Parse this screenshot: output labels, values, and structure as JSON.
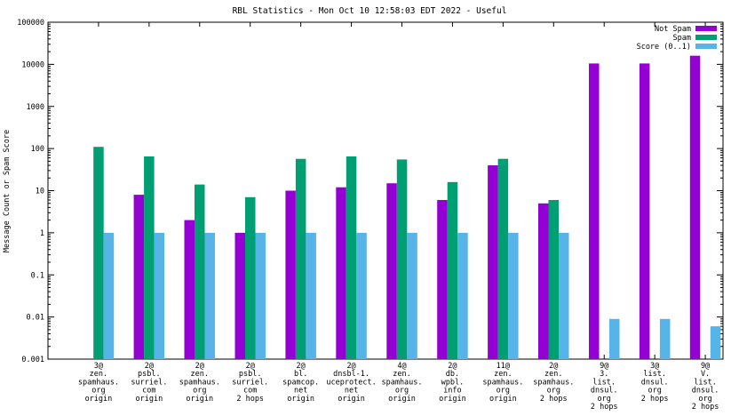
{
  "chart_data": {
    "type": "bar",
    "title": "RBL Statistics - Mon Oct 10 12:58:03 EDT 2022 - Useful",
    "xlabel": "",
    "ylabel": "Message Count or Spam Score",
    "yscale": "log",
    "ylim": [
      0.001,
      100000
    ],
    "yticks": [
      "0.001",
      "0.01",
      "0.1",
      "1",
      "10",
      "100",
      "1000",
      "10000",
      "100000"
    ],
    "legend_position": "top-right",
    "categories": [
      [
        "3@",
        "zen.",
        "spamhaus.",
        "org",
        "origin"
      ],
      [
        "2@",
        "psbl.",
        "surriel.",
        "com",
        "origin"
      ],
      [
        "2@",
        "zen.",
        "spamhaus.",
        "org",
        "origin"
      ],
      [
        "2@",
        "psbl.",
        "surriel.",
        "com",
        "2 hops"
      ],
      [
        "2@",
        "bl.",
        "spamcop.",
        "net",
        "origin"
      ],
      [
        "2@",
        "dnsbl-1.",
        "uceprotect.",
        "net",
        "origin"
      ],
      [
        "4@",
        "zen.",
        "spamhaus.",
        "org",
        "origin"
      ],
      [
        "2@",
        "db.",
        "wpbl.",
        "info",
        "origin"
      ],
      [
        "11@",
        "zen.",
        "spamhaus.",
        "org",
        "origin"
      ],
      [
        "2@",
        "zen.",
        "spamhaus.",
        "org",
        "2 hops"
      ],
      [
        "9@",
        "3.",
        "list.",
        "dnsul.",
        "org",
        "2 hops"
      ],
      [
        "3@",
        "list.",
        "dnsul.",
        "org",
        "2 hops"
      ],
      [
        "9@",
        "V.",
        "list.",
        "dnsul.",
        "org",
        "2 hops"
      ]
    ],
    "series": [
      {
        "name": "Not Spam",
        "color": "#9400d3",
        "values": [
          null,
          8,
          2,
          1,
          10,
          12,
          15,
          6,
          40,
          5,
          10500,
          10500,
          16000
        ]
      },
      {
        "name": "Spam",
        "color": "#009e73",
        "values": [
          110,
          65,
          14,
          7,
          57,
          65,
          55,
          16,
          57,
          6,
          null,
          null,
          null
        ]
      },
      {
        "name": "Score (0..1)",
        "color": "#56b4e9",
        "values": [
          1,
          1,
          1,
          1,
          1,
          1,
          1,
          1,
          1,
          1,
          0.009,
          0.009,
          0.006
        ]
      }
    ]
  }
}
